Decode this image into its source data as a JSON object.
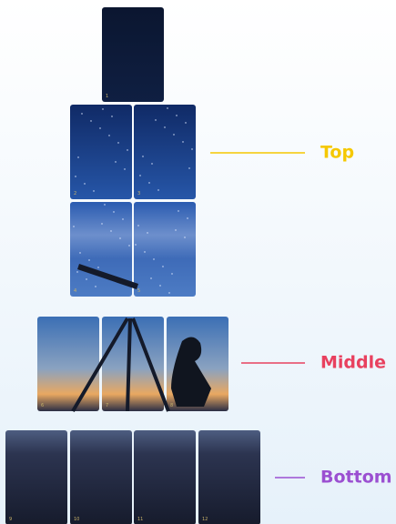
{
  "groups": [
    {
      "label": "Top",
      "tiles": [
        "1",
        "2",
        "3",
        "4",
        "5"
      ]
    },
    {
      "label": "Middle",
      "tiles": [
        "6",
        "7",
        "8"
      ]
    },
    {
      "label": "Bottom",
      "tiles": [
        "9",
        "10",
        "11",
        "12"
      ]
    }
  ]
}
